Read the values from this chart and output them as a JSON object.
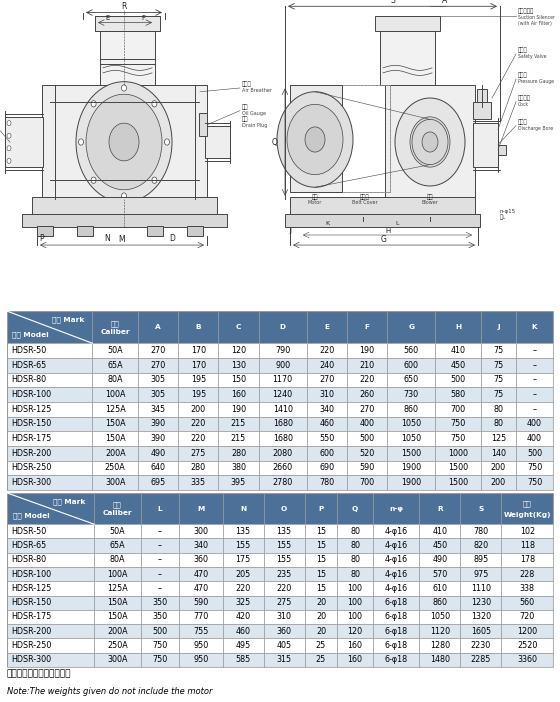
{
  "table1_header_row1": [
    "记号 Mark",
    "口径",
    "A",
    "B",
    "C",
    "D",
    "E",
    "F",
    "G",
    "H",
    "J",
    "K"
  ],
  "table1_header_row2": [
    "型式 Model",
    "Caliber",
    "",
    "",
    "",
    "",
    "",
    "",
    "",
    "",
    "",
    ""
  ],
  "table1_rows": [
    [
      "HDSR-50",
      "50A",
      "270",
      "170",
      "120",
      "790",
      "220",
      "190",
      "560",
      "410",
      "75",
      "–"
    ],
    [
      "HDSR-65",
      "65A",
      "270",
      "170",
      "130",
      "900",
      "240",
      "210",
      "600",
      "450",
      "75",
      "–"
    ],
    [
      "HDSR-80",
      "80A",
      "305",
      "195",
      "150",
      "1170",
      "270",
      "220",
      "650",
      "500",
      "75",
      "–"
    ],
    [
      "HDSR-100",
      "100A",
      "305",
      "195",
      "160",
      "1240",
      "310",
      "260",
      "730",
      "580",
      "75",
      "–"
    ],
    [
      "HDSR-125",
      "125A",
      "345",
      "200",
      "190",
      "1410",
      "340",
      "270",
      "860",
      "700",
      "80",
      "–"
    ],
    [
      "HDSR-150",
      "150A",
      "390",
      "220",
      "215",
      "1680",
      "460",
      "400",
      "1050",
      "750",
      "80",
      "400"
    ],
    [
      "HDSR-175",
      "150A",
      "390",
      "220",
      "215",
      "1680",
      "550",
      "500",
      "1050",
      "750",
      "125",
      "400"
    ],
    [
      "HDSR-200",
      "200A",
      "490",
      "275",
      "280",
      "2080",
      "600",
      "520",
      "1500",
      "1000",
      "140",
      "500"
    ],
    [
      "HDSR-250",
      "250A",
      "640",
      "280",
      "380",
      "2660",
      "690",
      "590",
      "1900",
      "1500",
      "200",
      "750"
    ],
    [
      "HDSR-300",
      "300A",
      "695",
      "335",
      "395",
      "2780",
      "780",
      "700",
      "1900",
      "1500",
      "200",
      "750"
    ]
  ],
  "table2_header_row1": [
    "记号 Mark",
    "口径",
    "L",
    "M",
    "N",
    "O",
    "P",
    "Q",
    "n-φ",
    "R",
    "S",
    "重量"
  ],
  "table2_header_row2": [
    "型式 Model",
    "Caliber",
    "",
    "",
    "",
    "",
    "",
    "",
    "",
    "",
    "",
    "Weight(Kg)"
  ],
  "table2_rows": [
    [
      "HDSR-50",
      "50A",
      "–",
      "300",
      "135",
      "135",
      "15",
      "80",
      "4-φ16",
      "410",
      "780",
      "102"
    ],
    [
      "HDSR-65",
      "65A",
      "–",
      "340",
      "155",
      "155",
      "15",
      "80",
      "4-φ16",
      "450",
      "820",
      "118"
    ],
    [
      "HDSR-80",
      "80A",
      "–",
      "360",
      "175",
      "155",
      "15",
      "80",
      "4-φ16",
      "490",
      "895",
      "178"
    ],
    [
      "HDSR-100",
      "100A",
      "–",
      "470",
      "205",
      "235",
      "15",
      "80",
      "4-φ16",
      "570",
      "975",
      "228"
    ],
    [
      "HDSR-125",
      "125A",
      "–",
      "470",
      "220",
      "220",
      "15",
      "100",
      "4-φ16",
      "610",
      "1110",
      "338"
    ],
    [
      "HDSR-150",
      "150A",
      "350",
      "590",
      "325",
      "275",
      "20",
      "100",
      "6-φ18",
      "860",
      "1230",
      "560"
    ],
    [
      "HDSR-175",
      "150A",
      "350",
      "770",
      "420",
      "310",
      "20",
      "100",
      "6-φ18",
      "1050",
      "1320",
      "720"
    ],
    [
      "HDSR-200",
      "200A",
      "500",
      "755",
      "460",
      "360",
      "20",
      "120",
      "6-φ18",
      "1120",
      "1605",
      "1200"
    ],
    [
      "HDSR-250",
      "250A",
      "750",
      "950",
      "495",
      "405",
      "25",
      "160",
      "6-φ18",
      "1280",
      "2230",
      "2520"
    ],
    [
      "HDSR-300",
      "300A",
      "750",
      "950",
      "585",
      "315",
      "25",
      "160",
      "6-φ18",
      "1480",
      "2285",
      "3360"
    ]
  ],
  "note_cn": "注：重量中不包括电机重量",
  "note_en": "Note:The weights given do not include the motor",
  "header_bg": "#4d7099",
  "alt_row_bg": "#dce6f1",
  "normal_row_bg": "#ffffff",
  "border_color": "#999999"
}
